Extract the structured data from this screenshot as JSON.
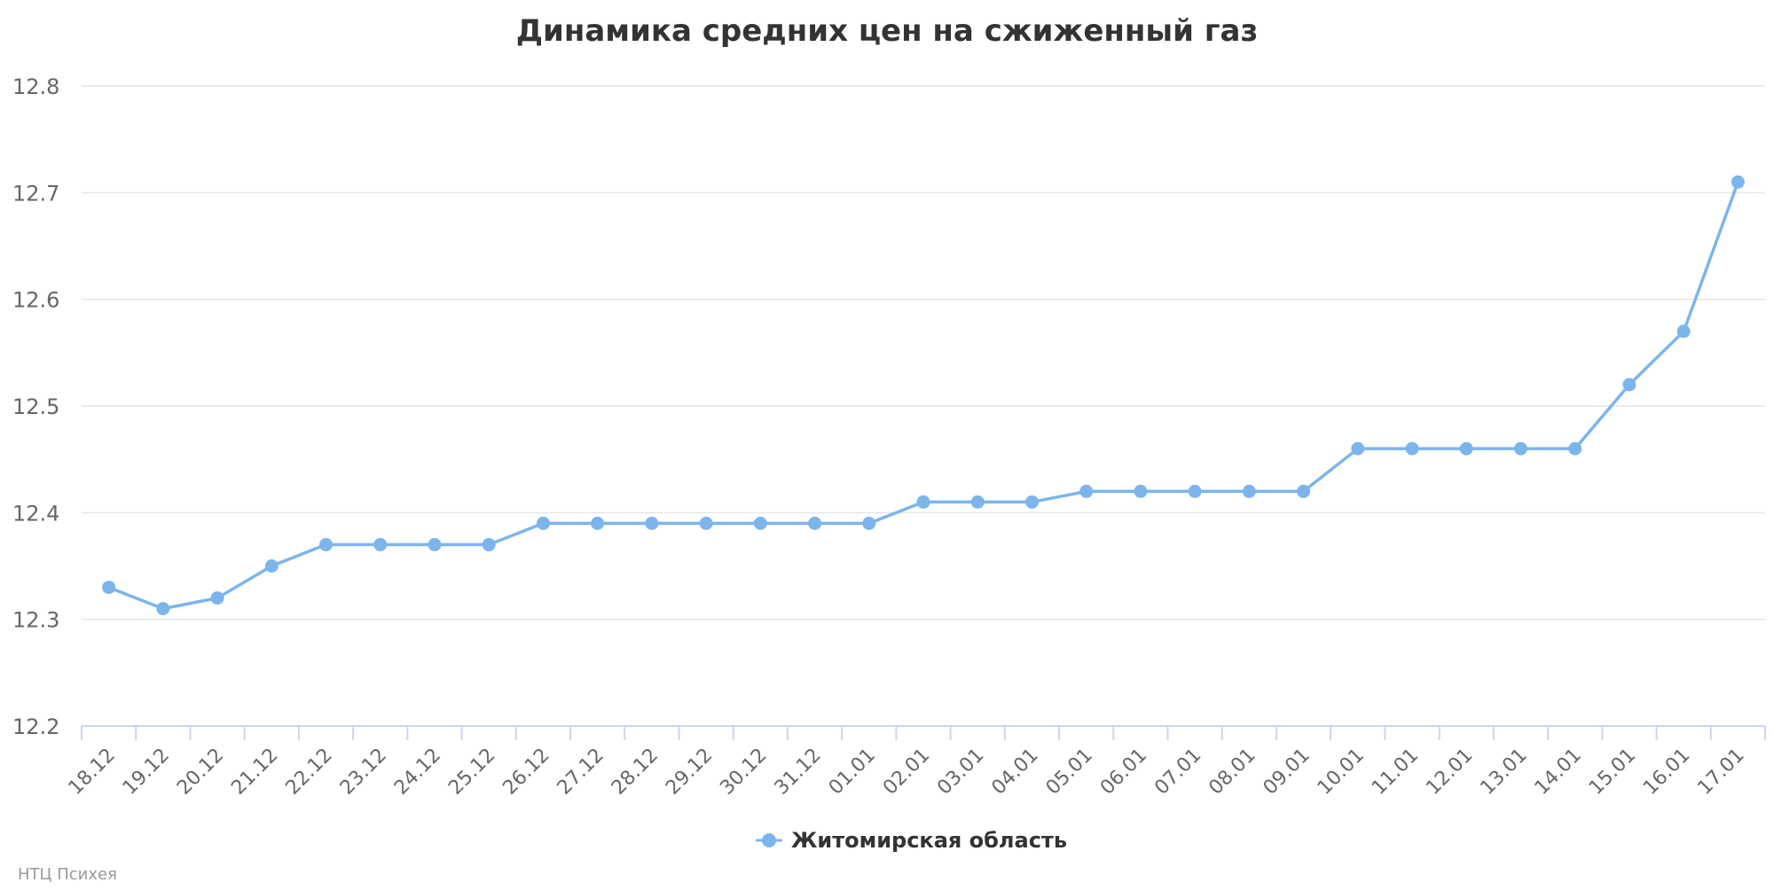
{
  "chart_data": {
    "type": "line",
    "title": "Динамика средних цен на сжиженный газ",
    "xlabel": "",
    "ylabel": "",
    "categories": [
      "18.12",
      "19.12",
      "20.12",
      "21.12",
      "22.12",
      "23.12",
      "24.12",
      "25.12",
      "26.12",
      "27.12",
      "28.12",
      "29.12",
      "30.12",
      "31.12",
      "01.01",
      "02.01",
      "03.01",
      "04.01",
      "05.01",
      "06.01",
      "07.01",
      "08.01",
      "09.01",
      "10.01",
      "11.01",
      "12.01",
      "13.01",
      "14.01",
      "15.01",
      "16.01",
      "17.01"
    ],
    "series": [
      {
        "name": "Житомирская область",
        "color": "#7cb5ec",
        "values": [
          12.33,
          12.31,
          12.32,
          12.35,
          12.37,
          12.37,
          12.37,
          12.37,
          12.39,
          12.39,
          12.39,
          12.39,
          12.39,
          12.39,
          12.39,
          12.41,
          12.41,
          12.41,
          12.42,
          12.42,
          12.42,
          12.42,
          12.42,
          12.46,
          12.46,
          12.46,
          12.46,
          12.46,
          12.52,
          12.57,
          12.71
        ]
      }
    ],
    "ylim": [
      12.2,
      12.8
    ],
    "yticks": [
      "12.8",
      "12.7",
      "12.6",
      "12.5",
      "12.4",
      "12.3",
      "12.2"
    ],
    "grid": true,
    "legend": "bottom-center"
  },
  "credits": "НТЦ Психея",
  "colors": {
    "series": "#7cb5ec",
    "grid": "#e6e6e6",
    "axis": "#ccd6eb",
    "tick_label": "#666666",
    "title": "#333333",
    "credits": "#999999"
  }
}
